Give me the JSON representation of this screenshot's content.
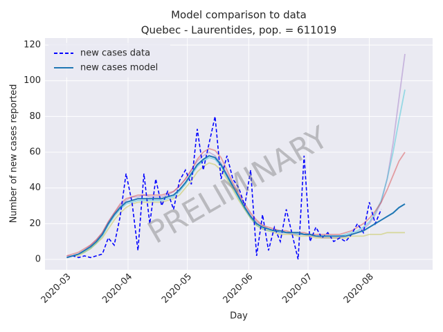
{
  "chart_data": {
    "type": "line",
    "title": "Model comparison to data",
    "subtitle": "Quebec - Laurentides, pop. = 611019",
    "xlabel": "Day",
    "ylabel": "Number of new cases reported",
    "watermark": "PRELIMINARY",
    "x": [
      "2020-03-01",
      "2020-03-04",
      "2020-03-07",
      "2020-03-10",
      "2020-03-13",
      "2020-03-16",
      "2020-03-19",
      "2020-03-22",
      "2020-03-25",
      "2020-03-28",
      "2020-03-31",
      "2020-04-03",
      "2020-04-06",
      "2020-04-09",
      "2020-04-12",
      "2020-04-15",
      "2020-04-18",
      "2020-04-21",
      "2020-04-24",
      "2020-04-27",
      "2020-04-30",
      "2020-05-03",
      "2020-05-06",
      "2020-05-09",
      "2020-05-12",
      "2020-05-15",
      "2020-05-18",
      "2020-05-21",
      "2020-05-24",
      "2020-05-27",
      "2020-05-30",
      "2020-06-02",
      "2020-06-05",
      "2020-06-08",
      "2020-06-11",
      "2020-06-14",
      "2020-06-17",
      "2020-06-20",
      "2020-06-23",
      "2020-06-26",
      "2020-06-29",
      "2020-07-02",
      "2020-07-05",
      "2020-07-08",
      "2020-07-11",
      "2020-07-14",
      "2020-07-17",
      "2020-07-20",
      "2020-07-23",
      "2020-07-26",
      "2020-07-29",
      "2020-08-01",
      "2020-08-04",
      "2020-08-07",
      "2020-08-10",
      "2020-08-13",
      "2020-08-16",
      "2020-08-19"
    ],
    "series": [
      {
        "name": "new cases data",
        "color": "#0000ff",
        "dashed": true,
        "values": [
          1,
          2,
          1,
          2,
          1,
          2,
          3,
          12,
          8,
          24,
          48,
          32,
          5,
          48,
          20,
          45,
          30,
          38,
          28,
          44,
          50,
          42,
          73,
          50,
          65,
          80,
          45,
          58,
          45,
          40,
          30,
          50,
          2,
          25,
          5,
          18,
          10,
          28,
          14,
          0,
          58,
          10,
          18,
          12,
          15,
          10,
          12,
          10,
          14,
          20,
          15,
          32,
          20,
          28,
          null,
          null,
          null,
          null
        ]
      },
      {
        "name": "new cases model",
        "color": "#1f77b4",
        "dashed": false,
        "values": [
          1,
          2,
          3,
          5,
          7,
          10,
          14,
          20,
          25,
          29,
          32,
          33,
          34,
          34,
          34,
          34,
          34,
          35,
          36,
          39,
          43,
          48,
          53,
          56,
          58,
          57,
          53,
          47,
          41,
          35,
          29,
          24,
          20,
          18,
          17,
          16,
          16,
          15,
          15,
          15,
          14,
          14,
          13,
          13,
          13,
          13,
          13,
          13,
          14,
          15,
          16,
          18,
          20,
          22,
          24,
          26,
          29,
          31
        ]
      }
    ],
    "ensemble": [
      {
        "color": "#9467bd",
        "values": [
          2,
          2,
          3,
          5,
          8,
          11,
          15,
          21,
          26,
          30,
          33,
          35,
          35,
          36,
          35,
          35,
          35,
          36,
          38,
          41,
          45,
          50,
          55,
          58,
          60,
          58,
          54,
          48,
          42,
          36,
          30,
          25,
          21,
          19,
          17,
          16,
          15,
          15,
          14,
          14,
          14,
          13,
          13,
          12,
          12,
          12,
          12,
          13,
          14,
          15,
          17,
          20,
          25,
          32,
          45,
          65,
          90,
          115
        ]
      },
      {
        "color": "#17becf",
        "values": [
          1,
          2,
          3,
          4,
          6,
          9,
          13,
          19,
          24,
          28,
          31,
          32,
          33,
          33,
          33,
          33,
          33,
          34,
          35,
          38,
          42,
          47,
          52,
          55,
          57,
          56,
          52,
          46,
          40,
          34,
          28,
          23,
          19,
          17,
          16,
          16,
          15,
          15,
          15,
          14,
          14,
          14,
          13,
          13,
          13,
          13,
          13,
          14,
          15,
          16,
          18,
          21,
          26,
          33,
          45,
          60,
          78,
          95
        ]
      },
      {
        "color": "#d62728",
        "values": [
          2,
          3,
          4,
          6,
          8,
          11,
          15,
          21,
          26,
          31,
          34,
          35,
          36,
          36,
          36,
          36,
          36,
          37,
          38,
          41,
          45,
          50,
          56,
          60,
          62,
          61,
          57,
          50,
          43,
          37,
          31,
          26,
          22,
          19,
          18,
          17,
          16,
          16,
          15,
          15,
          15,
          14,
          14,
          14,
          14,
          14,
          14,
          15,
          16,
          18,
          20,
          23,
          27,
          32,
          39,
          47,
          55,
          60
        ]
      },
      {
        "color": "#bcbd22",
        "values": [
          1,
          2,
          2,
          4,
          6,
          9,
          12,
          17,
          22,
          26,
          29,
          31,
          32,
          32,
          32,
          32,
          32,
          33,
          34,
          36,
          40,
          44,
          49,
          52,
          54,
          53,
          50,
          45,
          39,
          33,
          28,
          23,
          19,
          17,
          16,
          15,
          14,
          14,
          14,
          13,
          13,
          13,
          12,
          12,
          12,
          12,
          12,
          12,
          13,
          13,
          13,
          14,
          14,
          14,
          15,
          15,
          15,
          15
        ]
      }
    ],
    "xlim": [
      "2020-02-19",
      "2020-09-02"
    ],
    "xticks": [
      {
        "value": "2020-03-01",
        "label": "2020-03"
      },
      {
        "value": "2020-04-01",
        "label": "2020-04"
      },
      {
        "value": "2020-05-01",
        "label": "2020-05"
      },
      {
        "value": "2020-06-01",
        "label": "2020-06"
      },
      {
        "value": "2020-07-01",
        "label": "2020-07"
      },
      {
        "value": "2020-08-01",
        "label": "2020-08"
      }
    ],
    "ylim": [
      -5.8,
      123.9
    ],
    "yticks": [
      0,
      20,
      40,
      60,
      80,
      100,
      120
    ],
    "grid": true,
    "legend": "upper-left"
  }
}
